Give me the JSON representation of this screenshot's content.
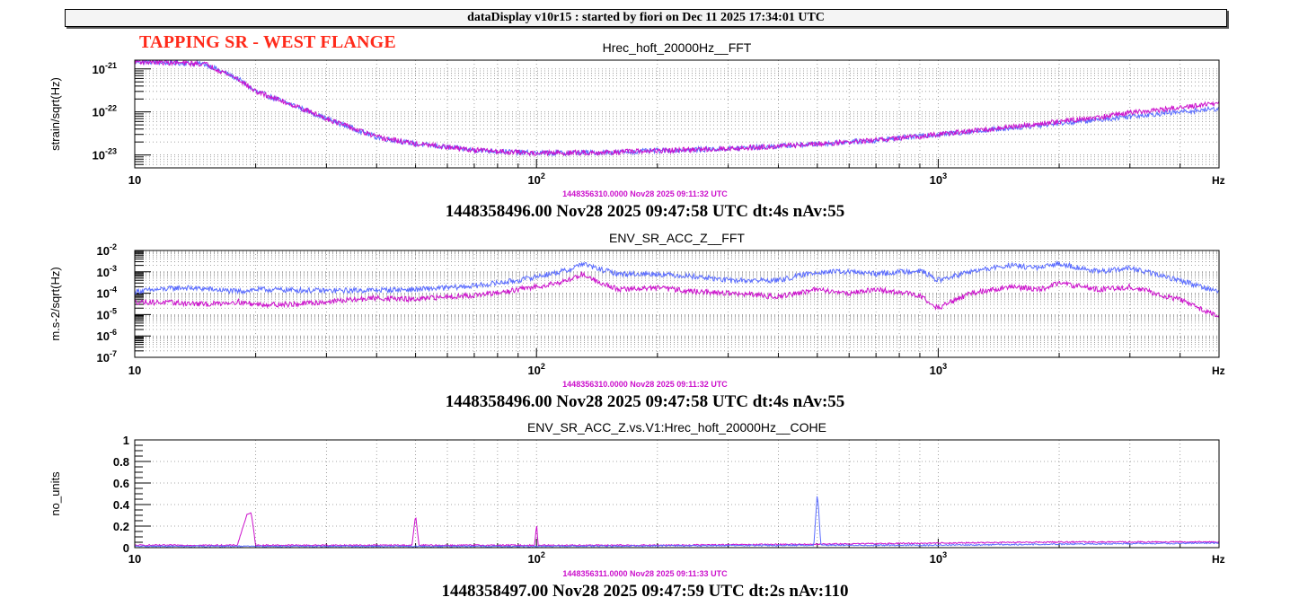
{
  "window": {
    "title": "dataDisplay v10r15 : started by fiori on Dec 11 2025 17:34:01 UTC",
    "annotation": "TAPPING SR - WEST FLANGE"
  },
  "colors": {
    "ref": "#cc11cc",
    "live": "#5a6cff",
    "annotation": "#ff2a1a",
    "gridline": "#888888"
  },
  "chart_data": [
    {
      "type": "line",
      "title": "Hrec_hoft_20000Hz__FFT",
      "ylabel": "strain/sqrt(Hz)",
      "xunit": "Hz",
      "xscale": "log",
      "yscale": "log",
      "xlim": [
        10,
        5000
      ],
      "ylim": [
        5e-24,
        1.6e-21
      ],
      "grid": true,
      "x_ticks": [
        {
          "v": 10,
          "b": "10",
          "e": ""
        },
        {
          "v": 100,
          "b": "10",
          "e": "2"
        },
        {
          "v": 1000,
          "b": "10",
          "e": "3"
        }
      ],
      "y_ticks": [
        {
          "v": 1e-21,
          "b": "10",
          "e": "-21"
        },
        {
          "v": 1e-22,
          "b": "10",
          "e": "-22"
        },
        {
          "v": 1e-23,
          "b": "10",
          "e": "-23"
        }
      ],
      "ref_timestamp": "1448356310.0000 Nov28 2025 09:11:32 UTC",
      "timestamp": "1448358496.00 Nov28 2025 09:47:58 UTC dt:4s nAv:55",
      "series": [
        {
          "color": "#5a6cff",
          "x": [
            10,
            15,
            18,
            20,
            25,
            30,
            40,
            50,
            70,
            100,
            150,
            200,
            300,
            400,
            500,
            700,
            1000,
            1500,
            2000,
            2500,
            3000,
            4000,
            5000
          ],
          "y": [
            1.5e-21,
            1.3e-21,
            6e-22,
            3e-22,
            1.4e-22,
            7e-23,
            2.6e-23,
            1.8e-23,
            1.3e-23,
            1.1e-23,
            1.15e-23,
            1.25e-23,
            1.4e-23,
            1.6e-23,
            1.8e-23,
            2.2e-23,
            3e-23,
            4.2e-23,
            5.5e-23,
            6.5e-23,
            8e-23,
            1e-22,
            1.2e-22
          ]
        },
        {
          "color": "#cc11cc",
          "x": [
            10,
            15,
            18,
            20,
            25,
            30,
            40,
            50,
            70,
            100,
            150,
            200,
            300,
            400,
            500,
            700,
            1000,
            1500,
            2000,
            2500,
            3000,
            4000,
            5000
          ],
          "y": [
            1.5e-21,
            1.3e-21,
            6e-22,
            3e-22,
            1.4e-22,
            7e-23,
            2.6e-23,
            1.8e-23,
            1.3e-23,
            1.1e-23,
            1.15e-23,
            1.25e-23,
            1.4e-23,
            1.6e-23,
            1.8e-23,
            2.2e-23,
            3e-23,
            4.4e-23,
            6e-23,
            7.5e-23,
            9.5e-23,
            1.25e-22,
            1.6e-22
          ]
        }
      ]
    },
    {
      "type": "line",
      "title": "ENV_SR_ACC_Z__FFT",
      "ylabel": "m.s-2/sqrt(Hz)",
      "xunit": "Hz",
      "xscale": "log",
      "yscale": "log",
      "xlim": [
        10,
        5000
      ],
      "ylim": [
        1e-07,
        0.01
      ],
      "grid": true,
      "x_ticks": [
        {
          "v": 10,
          "b": "10",
          "e": ""
        },
        {
          "v": 100,
          "b": "10",
          "e": "2"
        },
        {
          "v": 1000,
          "b": "10",
          "e": "3"
        }
      ],
      "y_ticks": [
        {
          "v": 0.01,
          "b": "10",
          "e": "-2"
        },
        {
          "v": 0.001,
          "b": "10",
          "e": "-3"
        },
        {
          "v": 0.0001,
          "b": "10",
          "e": "-4"
        },
        {
          "v": 1e-05,
          "b": "10",
          "e": "-5"
        },
        {
          "v": 1e-06,
          "b": "10",
          "e": "-6"
        },
        {
          "v": 1e-07,
          "b": "10",
          "e": "-7"
        }
      ],
      "ref_timestamp": "1448356310.0000 Nov28 2025 09:11:32 UTC",
      "timestamp": "1448358496.00 Nov28 2025 09:47:58 UTC dt:4s nAv:55",
      "series": [
        {
          "color": "#5a6cff",
          "x": [
            10,
            13,
            15,
            18,
            20,
            25,
            30,
            40,
            50,
            60,
            70,
            80,
            90,
            100,
            120,
            130,
            140,
            160,
            200,
            250,
            300,
            400,
            500,
            600,
            700,
            900,
            1000,
            1200,
            1500,
            1800,
            2000,
            2500,
            3000,
            4000,
            5000
          ],
          "y": [
            0.00012,
            0.00018,
            0.00016,
            0.00012,
            0.00015,
            0.00014,
            0.00013,
            0.00014,
            0.00015,
            0.00018,
            0.00022,
            0.0003,
            0.0004,
            0.0006,
            0.0012,
            0.0025,
            0.0015,
            0.0008,
            0.0008,
            0.0006,
            0.0004,
            0.0004,
            0.001,
            0.001,
            0.0008,
            0.0012,
            0.0004,
            0.001,
            0.002,
            0.0015,
            0.0025,
            0.001,
            0.0015,
            0.0004,
            0.00012
          ]
        },
        {
          "color": "#cc11cc",
          "x": [
            10,
            13,
            15,
            18,
            20,
            25,
            30,
            40,
            50,
            60,
            70,
            80,
            90,
            100,
            120,
            130,
            140,
            160,
            200,
            250,
            300,
            400,
            500,
            600,
            700,
            900,
            1000,
            1200,
            1500,
            1800,
            2000,
            2500,
            3000,
            4000,
            5000
          ],
          "y": [
            4e-05,
            3.5e-05,
            3e-05,
            4e-05,
            3e-05,
            3e-05,
            4e-05,
            6e-05,
            5e-05,
            7e-05,
            8e-05,
            0.0001,
            0.00015,
            0.0002,
            0.0004,
            0.0008,
            0.0004,
            0.00015,
            0.00018,
            0.00012,
            0.0001,
            7e-05,
            0.00015,
            0.0001,
            0.00015,
            8e-05,
            2e-05,
            0.0001,
            0.0002,
            0.00015,
            0.0003,
            0.00015,
            0.0002,
            5e-05,
            8e-06
          ]
        }
      ]
    },
    {
      "type": "line",
      "title": "ENV_SR_ACC_Z.vs.V1:Hrec_hoft_20000Hz__COHE",
      "ylabel": "no_units",
      "xunit": "Hz",
      "xscale": "log",
      "yscale": "linear",
      "xlim": [
        10,
        5000
      ],
      "ylim": [
        0,
        1
      ],
      "grid": true,
      "x_ticks": [
        {
          "v": 10,
          "b": "10",
          "e": ""
        },
        {
          "v": 100,
          "b": "10",
          "e": "2"
        },
        {
          "v": 1000,
          "b": "10",
          "e": "3"
        }
      ],
      "y_ticks": [
        {
          "v": 1,
          "b": "1",
          "e": ""
        },
        {
          "v": 0.8,
          "b": "0.8",
          "e": ""
        },
        {
          "v": 0.6,
          "b": "0.6",
          "e": ""
        },
        {
          "v": 0.4,
          "b": "0.4",
          "e": ""
        },
        {
          "v": 0.2,
          "b": "0.2",
          "e": ""
        },
        {
          "v": 0,
          "b": "0",
          "e": ""
        }
      ],
      "ref_timestamp": "1448356311.0000 Nov28 2025 09:11:33 UTC",
      "timestamp": "1448358497.00 Nov28 2025 09:47:59 UTC dt:2s nAv:110",
      "series": [
        {
          "color": "#cc11cc",
          "x": [
            10,
            18,
            19,
            19.5,
            20,
            30,
            49,
            50,
            51,
            70,
            99,
            100,
            101,
            200,
            500,
            1000,
            2000,
            5000
          ],
          "y": [
            0.02,
            0.02,
            0.3,
            0.32,
            0.02,
            0.02,
            0.02,
            0.3,
            0.02,
            0.02,
            0.02,
            0.22,
            0.02,
            0.02,
            0.03,
            0.04,
            0.05,
            0.05
          ]
        },
        {
          "color": "#5a6cff",
          "x": [
            10,
            100,
            490,
            500,
            505,
            510,
            1000,
            2000,
            5000
          ],
          "y": [
            0.01,
            0.01,
            0.02,
            0.5,
            0.3,
            0.02,
            0.02,
            0.03,
            0.04
          ]
        }
      ]
    }
  ]
}
